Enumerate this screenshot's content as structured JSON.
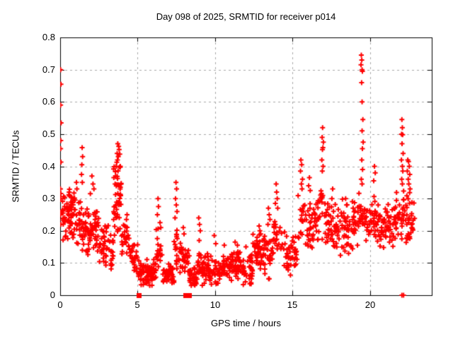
{
  "chart_data": {
    "type": "scatter",
    "title": "Day 098 of 2025, SRMTID for receiver p014",
    "xlabel": "GPS time / hours",
    "ylabel": "SRMTID / TECUs",
    "xlim": [
      0,
      24
    ],
    "ylim": [
      0,
      0.8
    ],
    "xticks": {
      "values": [
        0,
        5,
        10,
        15,
        20
      ],
      "labels": [
        "0",
        "5",
        "10",
        "15",
        "20"
      ]
    },
    "yticks": {
      "values": [
        0,
        0.1,
        0.2,
        0.3,
        0.4,
        0.5,
        0.6,
        0.7,
        0.8
      ],
      "labels": [
        "0",
        "0.1",
        "0.2",
        "0.3",
        "0.4",
        "0.5",
        "0.6",
        "0.7",
        "0.8"
      ]
    },
    "grid": true,
    "legend": "none",
    "marker": {
      "shape": "plus",
      "size": 7,
      "stroke": 2
    },
    "colors": {
      "points": "#ff0000",
      "grid": "#a8a8a8",
      "axis": "#000000",
      "background": "#ffffff"
    },
    "prng_seed": 7,
    "density_bands": [
      {
        "x0": 0.02,
        "x1": 1.0,
        "y0": 0.16,
        "y1": 0.335,
        "n": 75
      },
      {
        "x0": 1.0,
        "x1": 1.9,
        "y0": 0.12,
        "y1": 0.3,
        "n": 55
      },
      {
        "x0": 1.9,
        "x1": 2.5,
        "y0": 0.12,
        "y1": 0.28,
        "n": 38
      },
      {
        "x0": 2.5,
        "x1": 3.45,
        "y0": 0.07,
        "y1": 0.22,
        "n": 50
      },
      {
        "x0": 3.45,
        "x1": 3.95,
        "y0": 0.17,
        "y1": 0.43,
        "n": 48
      },
      {
        "x0": 3.95,
        "x1": 4.45,
        "y0": 0.1,
        "y1": 0.245,
        "n": 26
      },
      {
        "x0": 4.45,
        "x1": 5.05,
        "y0": 0.06,
        "y1": 0.17,
        "n": 28
      },
      {
        "x0": 5.05,
        "x1": 6.2,
        "y0": 0.025,
        "y1": 0.12,
        "n": 78
      },
      {
        "x0": 6.2,
        "x1": 6.6,
        "y0": 0.05,
        "y1": 0.22,
        "n": 20
      },
      {
        "x0": 6.6,
        "x1": 7.35,
        "y0": 0.03,
        "y1": 0.11,
        "n": 45
      },
      {
        "x0": 7.35,
        "x1": 7.65,
        "y0": 0.06,
        "y1": 0.24,
        "n": 15
      },
      {
        "x0": 7.65,
        "x1": 8.35,
        "y0": 0.04,
        "y1": 0.185,
        "n": 35
      },
      {
        "x0": 8.35,
        "x1": 8.85,
        "y0": 0.02,
        "y1": 0.1,
        "n": 30
      },
      {
        "x0": 8.85,
        "x1": 9.15,
        "y0": 0.05,
        "y1": 0.16,
        "n": 14
      },
      {
        "x0": 9.15,
        "x1": 10.4,
        "y0": 0.025,
        "y1": 0.13,
        "n": 70
      },
      {
        "x0": 10.4,
        "x1": 11.1,
        "y0": 0.03,
        "y1": 0.145,
        "n": 40
      },
      {
        "x0": 11.1,
        "x1": 11.8,
        "y0": 0.04,
        "y1": 0.15,
        "n": 40
      },
      {
        "x0": 11.8,
        "x1": 12.45,
        "y0": 0.03,
        "y1": 0.13,
        "n": 40
      },
      {
        "x0": 12.45,
        "x1": 13.2,
        "y0": 0.08,
        "y1": 0.21,
        "n": 45
      },
      {
        "x0": 13.2,
        "x1": 13.7,
        "y0": 0.04,
        "y1": 0.21,
        "n": 24
      },
      {
        "x0": 13.7,
        "x1": 14.25,
        "y0": 0.09,
        "y1": 0.26,
        "n": 24
      },
      {
        "x0": 14.25,
        "x1": 15.35,
        "y0": 0.06,
        "y1": 0.21,
        "n": 50
      },
      {
        "x0": 15.35,
        "x1": 15.8,
        "y0": 0.14,
        "y1": 0.33,
        "n": 18
      },
      {
        "x0": 15.8,
        "x1": 16.6,
        "y0": 0.12,
        "y1": 0.31,
        "n": 40
      },
      {
        "x0": 16.6,
        "x1": 17.15,
        "y0": 0.17,
        "y1": 0.38,
        "n": 24
      },
      {
        "x0": 17.15,
        "x1": 18.2,
        "y0": 0.11,
        "y1": 0.3,
        "n": 55
      },
      {
        "x0": 18.2,
        "x1": 19.3,
        "y0": 0.12,
        "y1": 0.31,
        "n": 58
      },
      {
        "x0": 19.3,
        "x1": 19.65,
        "y0": 0.18,
        "y1": 0.34,
        "n": 16
      },
      {
        "x0": 19.65,
        "x1": 20.6,
        "y0": 0.14,
        "y1": 0.32,
        "n": 50
      },
      {
        "x0": 20.6,
        "x1": 21.6,
        "y0": 0.13,
        "y1": 0.3,
        "n": 50
      },
      {
        "x0": 21.6,
        "x1": 22.3,
        "y0": 0.15,
        "y1": 0.33,
        "n": 35
      },
      {
        "x0": 22.3,
        "x1": 22.75,
        "y0": 0.15,
        "y1": 0.33,
        "n": 30
      },
      {
        "x0": 22.75,
        "x1": 22.9,
        "y0": 0.18,
        "y1": 0.3,
        "n": 5
      }
    ],
    "outlier_points": [
      [
        0.03,
        0.7
      ],
      [
        0.05,
        0.655
      ],
      [
        0.03,
        0.59
      ],
      [
        0.06,
        0.535
      ],
      [
        0.04,
        0.48
      ],
      [
        0.03,
        0.455
      ],
      [
        0.05,
        0.413
      ],
      [
        0.02,
        0.33
      ],
      [
        0.04,
        0.3
      ],
      [
        0.02,
        0.25
      ],
      [
        0.04,
        0.22
      ],
      [
        1.05,
        0.35
      ],
      [
        1.08,
        0.33
      ],
      [
        1.42,
        0.458
      ],
      [
        1.45,
        0.43
      ],
      [
        1.4,
        0.405
      ],
      [
        1.38,
        0.375
      ],
      [
        1.43,
        0.35
      ],
      [
        1.95,
        0.315
      ],
      [
        2.05,
        0.37
      ],
      [
        2.12,
        0.345
      ],
      [
        2.18,
        0.33
      ],
      [
        3.55,
        0.345
      ],
      [
        3.58,
        0.37
      ],
      [
        3.62,
        0.4
      ],
      [
        3.68,
        0.44
      ],
      [
        3.7,
        0.42
      ],
      [
        3.72,
        0.47
      ],
      [
        3.75,
        0.43
      ],
      [
        3.78,
        0.462
      ],
      [
        3.81,
        0.452
      ],
      [
        3.85,
        0.438
      ],
      [
        3.88,
        0.4
      ],
      [
        4.28,
        0.235
      ],
      [
        4.32,
        0.25
      ],
      [
        6.28,
        0.25
      ],
      [
        6.32,
        0.3
      ],
      [
        6.35,
        0.275
      ],
      [
        6.45,
        0.225
      ],
      [
        6.5,
        0.21
      ],
      [
        7.42,
        0.24
      ],
      [
        7.45,
        0.3
      ],
      [
        7.48,
        0.35
      ],
      [
        7.5,
        0.28
      ],
      [
        7.52,
        0.33
      ],
      [
        7.55,
        0.26
      ],
      [
        7.95,
        0.21
      ],
      [
        8.0,
        0.19
      ],
      [
        8.95,
        0.24
      ],
      [
        8.98,
        0.17
      ],
      [
        9.0,
        0.22
      ],
      [
        9.05,
        0.2
      ],
      [
        9.95,
        0.185
      ],
      [
        10.05,
        0.16
      ],
      [
        10.6,
        0.155
      ],
      [
        11.3,
        0.165
      ],
      [
        11.45,
        0.155
      ],
      [
        12.0,
        0.15
      ],
      [
        12.85,
        0.215
      ],
      [
        12.9,
        0.2
      ],
      [
        12.95,
        0.19
      ],
      [
        13.42,
        0.22
      ],
      [
        13.45,
        0.27
      ],
      [
        13.5,
        0.25
      ],
      [
        13.55,
        0.235
      ],
      [
        13.9,
        0.285
      ],
      [
        13.95,
        0.345
      ],
      [
        13.98,
        0.32
      ],
      [
        14.02,
        0.3
      ],
      [
        14.05,
        0.27
      ],
      [
        15.52,
        0.385
      ],
      [
        15.55,
        0.42
      ],
      [
        15.58,
        0.345
      ],
      [
        15.6,
        0.405
      ],
      [
        15.62,
        0.33
      ],
      [
        15.65,
        0.36
      ],
      [
        16.05,
        0.34
      ],
      [
        16.1,
        0.365
      ],
      [
        16.15,
        0.325
      ],
      [
        16.9,
        0.42
      ],
      [
        16.92,
        0.49
      ],
      [
        16.93,
        0.385
      ],
      [
        16.94,
        0.452
      ],
      [
        16.95,
        0.52
      ],
      [
        16.97,
        0.458
      ],
      [
        16.98,
        0.4
      ],
      [
        17.0,
        0.475
      ],
      [
        17.55,
        0.3
      ],
      [
        17.6,
        0.33
      ],
      [
        19.43,
        0.715
      ],
      [
        19.45,
        0.745
      ],
      [
        19.45,
        0.36
      ],
      [
        19.47,
        0.66
      ],
      [
        19.48,
        0.73
      ],
      [
        19.48,
        0.42
      ],
      [
        19.5,
        0.7
      ],
      [
        19.5,
        0.6
      ],
      [
        19.5,
        0.51
      ],
      [
        19.5,
        0.345
      ],
      [
        19.52,
        0.695
      ],
      [
        19.52,
        0.455
      ],
      [
        19.53,
        0.39
      ],
      [
        19.55,
        0.545
      ],
      [
        19.57,
        0.475
      ],
      [
        20.25,
        0.355
      ],
      [
        20.3,
        0.4
      ],
      [
        20.35,
        0.38
      ],
      [
        22.04,
        0.42
      ],
      [
        22.05,
        0.5
      ],
      [
        22.06,
        0.36
      ],
      [
        22.07,
        0.545
      ],
      [
        22.08,
        0.47
      ],
      [
        22.1,
        0.52
      ],
      [
        22.1,
        0.4
      ],
      [
        22.1,
        0.345
      ],
      [
        22.12,
        0.498
      ],
      [
        22.13,
        0.385
      ],
      [
        22.15,
        0.44
      ],
      [
        22.42,
        0.385
      ],
      [
        22.45,
        0.42
      ],
      [
        22.48,
        0.36
      ],
      [
        22.5,
        0.415
      ],
      [
        22.52,
        0.345
      ],
      [
        22.55,
        0.4
      ],
      [
        22.58,
        0.375
      ],
      [
        22.6,
        0.33
      ]
    ],
    "zero_markers": {
      "squares": [
        5.08,
        8.07,
        8.31
      ],
      "points": [
        22.07,
        22.18
      ]
    }
  }
}
